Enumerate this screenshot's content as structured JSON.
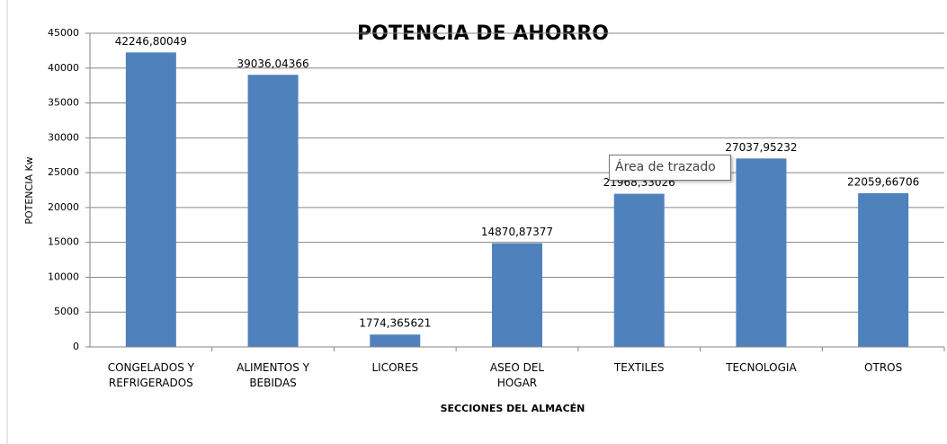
{
  "chart_data": {
    "type": "bar",
    "title": "POTENCIA DE AHORRO",
    "x_label": "SECCIONES  DEL ALMACÉN",
    "y_label": "POTENCIA  Kw",
    "categories": [
      "CONGELADOS Y REFRIGERADOS",
      "ALIMENTOS Y BEBIDAS",
      "LICORES",
      "ASEO DEL HOGAR",
      "TEXTILES",
      "TECNOLOGIA",
      "OTROS"
    ],
    "values": [
      42246.80049,
      39036.04366,
      1774.365621,
      14870.87377,
      21968.33026,
      27037.95232,
      22059.66706
    ],
    "value_labels": [
      "42246,80049",
      "39036,04366",
      "1774,365621",
      "14870,87377",
      "21968,33026",
      "27037,95232",
      "22059,66706"
    ],
    "color": "#4f81bd",
    "ylim": [
      0,
      45000
    ],
    "yticks": [
      0,
      5000,
      10000,
      15000,
      20000,
      25000,
      30000,
      35000,
      40000,
      45000
    ],
    "grid": true,
    "tooltip": "Área de trazado"
  }
}
